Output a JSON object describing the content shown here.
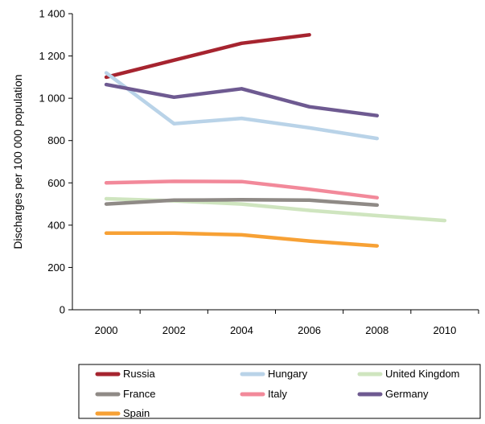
{
  "chart_data": {
    "type": "line",
    "title": "",
    "xlabel": "",
    "ylabel": "Discharges per 100 000 population",
    "x_ticks": [
      "2000",
      "2002",
      "2004",
      "2006",
      "2008",
      "2010"
    ],
    "y_ticks": [
      "0",
      "200",
      "400",
      "600",
      "800",
      "1 000",
      "1 200",
      "1 400"
    ],
    "xlim": [
      1999,
      2011
    ],
    "ylim": [
      0,
      1400
    ],
    "grid": false,
    "legend_position": "bottom",
    "series": [
      {
        "name": "Russia",
        "color": "#a6242f",
        "x": [
          2000,
          2002,
          2004,
          2006
        ],
        "y": [
          1100,
          1180,
          1260,
          1300
        ]
      },
      {
        "name": "Hungary",
        "color": "#b9d3e8",
        "x": [
          2000,
          2002,
          2004,
          2006,
          2008
        ],
        "y": [
          1120,
          880,
          905,
          860,
          810
        ]
      },
      {
        "name": "United Kingdom",
        "color": "#cfe5bf",
        "x": [
          2000,
          2002,
          2004,
          2006,
          2008,
          2010
        ],
        "y": [
          525,
          515,
          500,
          470,
          445,
          422
        ]
      },
      {
        "name": "France",
        "color": "#8f8a86",
        "x": [
          2000,
          2002,
          2004,
          2006,
          2008
        ],
        "y": [
          500,
          518,
          520,
          518,
          495
        ]
      },
      {
        "name": "Italy",
        "color": "#f2899a",
        "x": [
          2000,
          2002,
          2004,
          2006,
          2008
        ],
        "y": [
          600,
          607,
          606,
          570,
          530
        ]
      },
      {
        "name": "Germany",
        "color": "#6e5a91",
        "x": [
          2000,
          2002,
          2004,
          2006,
          2008
        ],
        "y": [
          1065,
          1005,
          1045,
          960,
          918
        ]
      },
      {
        "name": "Spain",
        "color": "#f7a135",
        "x": [
          2000,
          2002,
          2004,
          2006,
          2008
        ],
        "y": [
          362,
          362,
          354,
          325,
          302
        ]
      }
    ]
  }
}
